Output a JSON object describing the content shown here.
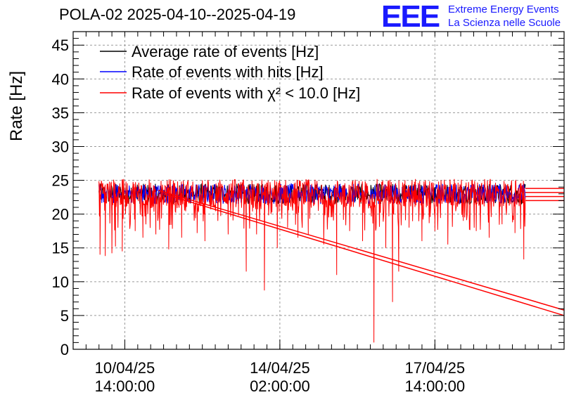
{
  "header": {
    "title": "POLA-02 2025-04-10--2025-04-19",
    "logo": "EEE",
    "logo_line1": "Extreme Energy Events",
    "logo_line2": "La Scienza nelle Scuole"
  },
  "chart_data": {
    "type": "line",
    "title": "POLA-02 2025-04-10--2025-04-19",
    "ylabel": "Rate [Hz]",
    "xlabel": "",
    "ylim": [
      0,
      47
    ],
    "yticks": [
      0,
      5,
      10,
      15,
      20,
      25,
      30,
      35,
      40,
      45
    ],
    "xlim": [
      0,
      9.5
    ],
    "xticks": [
      {
        "pos": 1.0,
        "line1": "10/04/25",
        "line2": "14:00:00"
      },
      {
        "pos": 4.0,
        "line1": "14/04/25",
        "line2": "02:00:00"
      },
      {
        "pos": 7.0,
        "line1": "17/04/25",
        "line2": "14:00:00"
      }
    ],
    "grid": true,
    "legend_position": "top-left",
    "series": [
      {
        "name": "Average rate of events [Hz]",
        "color": "#000000",
        "baseline": 23.0,
        "low": 21.5,
        "high": 24.5
      },
      {
        "name": "Rate of events with hits [Hz]",
        "color": "#0000ff",
        "baseline": 23.0,
        "low": 21.5,
        "high": 24.5
      },
      {
        "name": "Rate of events with χ² < 10.0 [Hz]",
        "color": "#ff0000",
        "baseline": 23.0,
        "low": 21.0,
        "high": 25.2
      }
    ],
    "data_range": {
      "start": 0.5,
      "end": 8.75
    },
    "dips": [
      {
        "x": 0.52,
        "y": 14.0
      },
      {
        "x": 0.62,
        "y": 13.8
      },
      {
        "x": 0.75,
        "y": 14.2
      },
      {
        "x": 0.82,
        "y": 15.2
      },
      {
        "x": 0.95,
        "y": 14.5
      },
      {
        "x": 1.2,
        "y": 17.5
      },
      {
        "x": 1.35,
        "y": 16.5
      },
      {
        "x": 1.6,
        "y": 17.0
      },
      {
        "x": 1.85,
        "y": 14.8
      },
      {
        "x": 2.1,
        "y": 16.5
      },
      {
        "x": 2.4,
        "y": 17.2
      },
      {
        "x": 2.55,
        "y": 16.0
      },
      {
        "x": 2.8,
        "y": 19.0
      },
      {
        "x": 3.0,
        "y": 17.0
      },
      {
        "x": 3.2,
        "y": 19.8
      },
      {
        "x": 3.35,
        "y": 11.5
      },
      {
        "x": 3.55,
        "y": 17.0
      },
      {
        "x": 3.7,
        "y": 8.7
      },
      {
        "x": 3.95,
        "y": 15.0
      },
      {
        "x": 4.15,
        "y": 18.0
      },
      {
        "x": 4.35,
        "y": 16.5
      },
      {
        "x": 4.55,
        "y": 17.0
      },
      {
        "x": 4.85,
        "y": 15.5
      },
      {
        "x": 5.1,
        "y": 11.0
      },
      {
        "x": 5.35,
        "y": 17.5
      },
      {
        "x": 5.6,
        "y": 16.0
      },
      {
        "x": 5.82,
        "y": 1.0
      },
      {
        "x": 6.05,
        "y": 15.0
      },
      {
        "x": 6.18,
        "y": 7.0
      },
      {
        "x": 6.3,
        "y": 11.5
      },
      {
        "x": 6.5,
        "y": 18.0
      },
      {
        "x": 6.75,
        "y": 16.0
      },
      {
        "x": 7.0,
        "y": 17.5
      },
      {
        "x": 7.25,
        "y": 15.5
      },
      {
        "x": 7.55,
        "y": 19.0
      },
      {
        "x": 7.8,
        "y": 17.5
      },
      {
        "x": 8.05,
        "y": 16.5
      },
      {
        "x": 8.3,
        "y": 18.5
      },
      {
        "x": 8.55,
        "y": 17.2
      },
      {
        "x": 8.72,
        "y": 13.3
      }
    ],
    "diagonal_lines": [
      {
        "from": [
          1.75,
          23.0
        ],
        "to": [
          9.5,
          5.0
        ]
      },
      {
        "from": [
          1.65,
          23.5
        ],
        "to": [
          9.5,
          5.8
        ]
      }
    ],
    "tail_lines": [
      22.0,
      22.6,
      23.2,
      23.8
    ],
    "tail_start": 8.75
  }
}
